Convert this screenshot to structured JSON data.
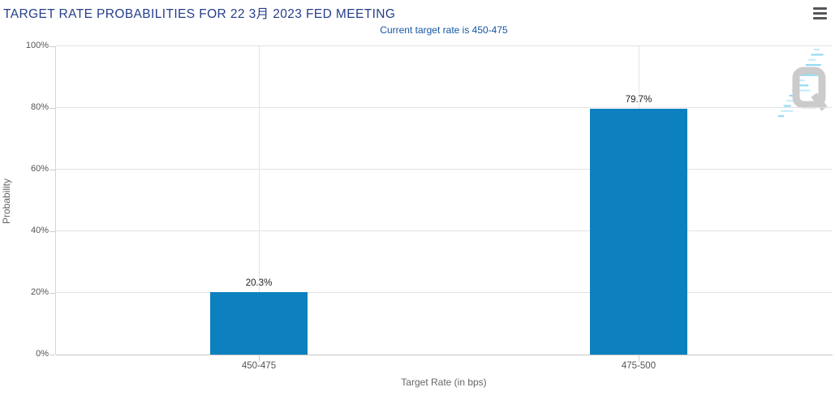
{
  "header": {
    "title": "TARGET RATE PROBABILITIES FOR 22 3月 2023 FED MEETING",
    "menu_icon": "hamburger-icon"
  },
  "chart_data": {
    "type": "bar",
    "title": "TARGET RATE PROBABILITIES FOR 22 3月 2023 FED MEETING",
    "subtitle": "Current target rate is 450-475",
    "categories": [
      "450-475",
      "475-500"
    ],
    "values": [
      20.3,
      79.7
    ],
    "data_labels": [
      "20.3%",
      "79.7%"
    ],
    "xlabel": "Target Rate (in bps)",
    "ylabel": "Probability",
    "ylim": [
      0,
      100
    ],
    "ytick_step": 20,
    "ytick_labels": [
      "0%",
      "20%",
      "40%",
      "60%",
      "80%",
      "100%"
    ],
    "grid": true,
    "legend": "none",
    "bar_color": "#0d80bf",
    "watermark_letter": "Q",
    "watermark_accent_color": "#8fd9f2",
    "watermark_letter_color": "#c9c9c9"
  },
  "colors": {
    "title": "#253e8a",
    "subtitle": "#1656a4",
    "bar": "#0d80bf",
    "gridline": "#e2e2e2",
    "tick_label": "#555555",
    "axis_title": "#666666"
  }
}
